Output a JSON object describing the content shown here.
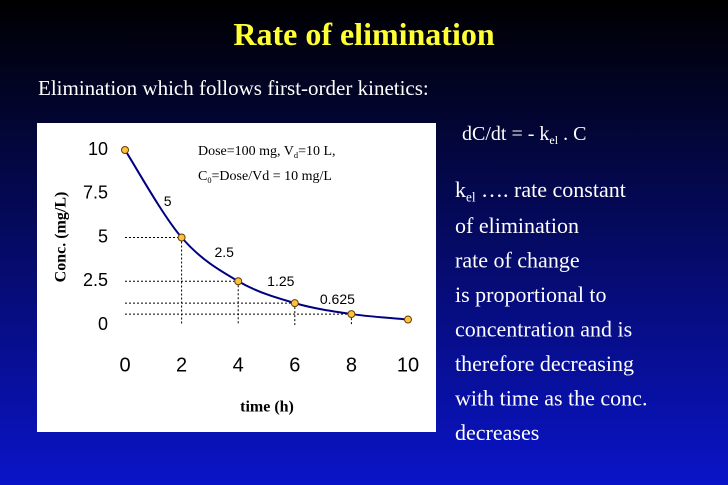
{
  "slide": {
    "title": "Rate of elimination",
    "subtitle": "Elimination which follows first-order kinetics:",
    "equation": [
      "dC/dt = - k",
      "el",
      " . C"
    ],
    "definition": [
      "k",
      "el",
      " …. rate constant"
    ],
    "body": [
      "of elimination",
      "rate of change",
      "is proportional to",
      "concentration and is",
      "therefore decreasing",
      "with time as the conc.",
      "decreases"
    ]
  },
  "chart_data": {
    "type": "line",
    "x_label": "time (h)",
    "y_label": "Conc. (mg/L)",
    "annotations": [
      [
        "Dose=100 mg, V",
        "d",
        "=10 L,"
      ],
      [
        "C",
        "0",
        "=Dose/Vd = 10 mg/L"
      ]
    ],
    "x": [
      0,
      2,
      4,
      6,
      8,
      10
    ],
    "series": [
      {
        "name": "Conc.",
        "color": "#000080",
        "marker_color": "#ffc040",
        "values": [
          10,
          5,
          2.5,
          1.25,
          0.625,
          0.3125
        ],
        "value_labels": [
          null,
          "5",
          "2.5",
          "1.25",
          "0.625",
          null
        ]
      }
    ],
    "xlim": [
      0,
      10
    ],
    "xticks": [
      0,
      2,
      4,
      6,
      8,
      10
    ],
    "ylim": [
      0,
      10
    ],
    "yticks": [
      0,
      2.5,
      5,
      7.5,
      10
    ],
    "guide_lines": true
  }
}
